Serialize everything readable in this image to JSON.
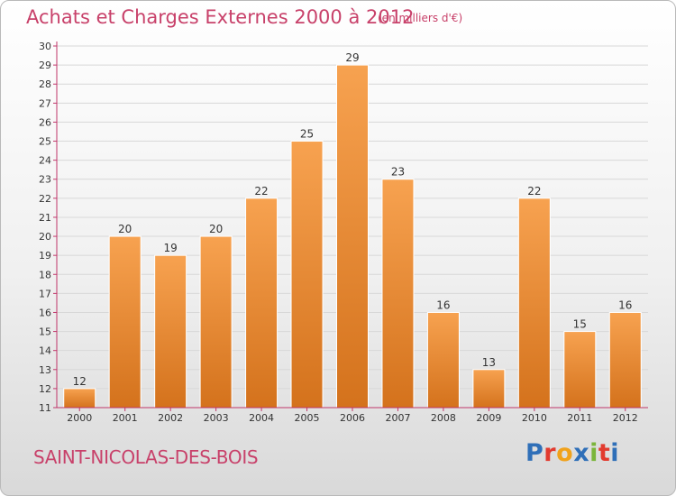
{
  "header": {
    "title": "Achats et Charges Externes 2000 à 2012",
    "subtitle": "(en milliers d'€)"
  },
  "footer": {
    "commune": "SAINT-NICOLAS-DES-BOIS",
    "logo_text": "Proxiti",
    "logo_colors": [
      "#2f6fb8",
      "#e23b2f",
      "#f0a21c",
      "#2f6fb8",
      "#7bb53b",
      "#e23b2f",
      "#2f6fb8"
    ]
  },
  "colors": {
    "bar_top": "#f7a250",
    "bar_bottom": "#d4721c",
    "axis": "#c0366a",
    "grid": "#d8d8d8",
    "text": "#333333"
  },
  "chart_data": {
    "type": "bar",
    "categories": [
      "2000",
      "2001",
      "2002",
      "2003",
      "2004",
      "2005",
      "2006",
      "2007",
      "2008",
      "2009",
      "2010",
      "2011",
      "2012"
    ],
    "values": [
      12,
      20,
      19,
      20,
      22,
      25,
      29,
      23,
      16,
      13,
      22,
      15,
      16
    ],
    "ylim": [
      11,
      30
    ],
    "yticks": [
      11,
      12,
      13,
      14,
      15,
      16,
      17,
      18,
      19,
      20,
      21,
      22,
      23,
      24,
      25,
      26,
      27,
      28,
      29,
      30
    ],
    "grid": true,
    "title": "Achats et Charges Externes 2000 à 2012",
    "xlabel": "",
    "ylabel": ""
  }
}
